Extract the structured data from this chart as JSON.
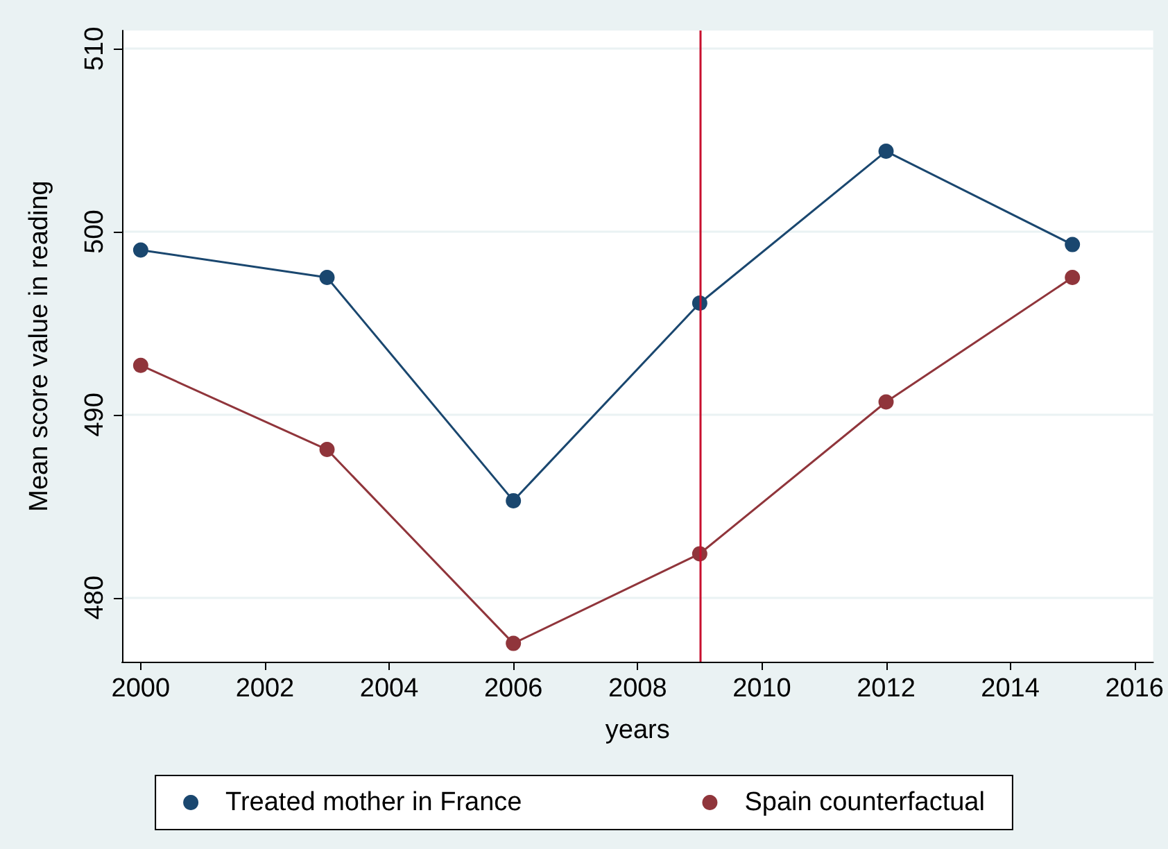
{
  "chart_data": {
    "type": "line",
    "xlabel": "years",
    "ylabel": "Mean score value in reading",
    "x": [
      2000,
      2003,
      2006,
      2009,
      2012,
      2015
    ],
    "series": [
      {
        "name": "Treated mother in France",
        "color": "#1a476f",
        "values": [
          499.0,
          497.5,
          485.3,
          496.1,
          504.4,
          499.3
        ]
      },
      {
        "name": "Spain counterfactual",
        "color": "#90353b",
        "values": [
          492.7,
          488.1,
          477.5,
          482.4,
          490.7,
          497.5
        ]
      }
    ],
    "xlim": [
      1999.7,
      2016.3
    ],
    "xticks": [
      2000,
      2002,
      2004,
      2006,
      2008,
      2010,
      2012,
      2014,
      2016
    ],
    "ylim": [
      476.5,
      511
    ],
    "yticks": [
      480,
      490,
      500,
      510
    ],
    "ref_lines": [
      {
        "axis": "x",
        "value": 2009,
        "color": "#c8102e"
      }
    ],
    "grid": "y",
    "legend": "bottom",
    "marker": "circle",
    "line_style": "solid"
  }
}
